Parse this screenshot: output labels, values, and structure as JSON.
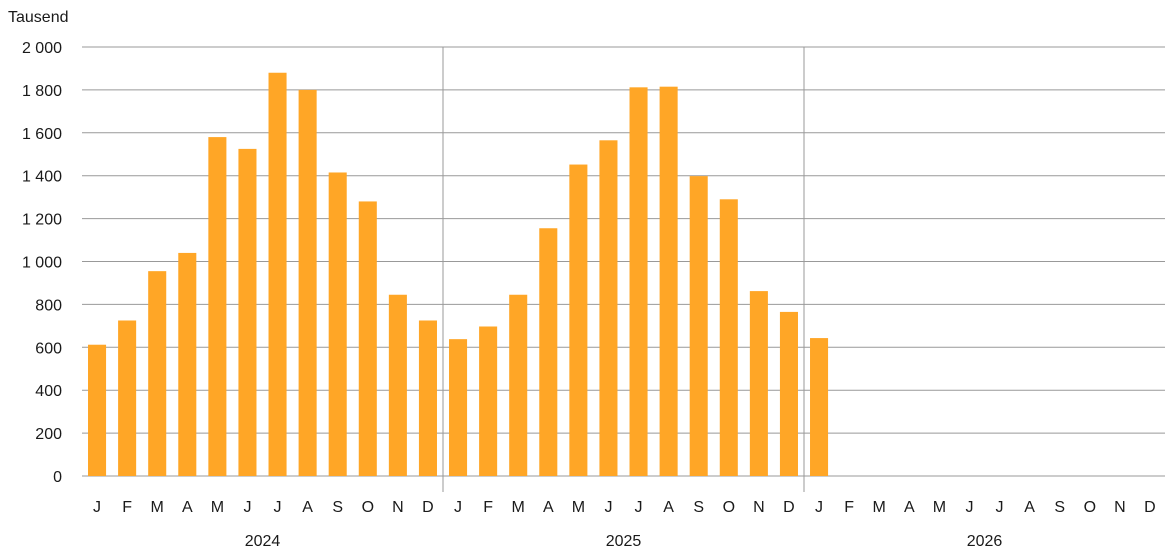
{
  "chart_data": {
    "type": "bar",
    "ylabel": "Tausend",
    "ylim": [
      0,
      2000
    ],
    "y_ticks": [
      0,
      200,
      400,
      600,
      800,
      1000,
      1200,
      1400,
      1600,
      1800,
      2000
    ],
    "y_tick_labels": [
      "0",
      "200",
      "400",
      "600",
      "800",
      "1 000",
      "1 200",
      "1 400",
      "1 600",
      "1 800",
      "2 000"
    ],
    "categories": [
      "J",
      "F",
      "M",
      "A",
      "M",
      "J",
      "J",
      "A",
      "S",
      "O",
      "N",
      "D",
      "J",
      "F",
      "M",
      "A",
      "M",
      "J",
      "J",
      "A",
      "S",
      "O",
      "N",
      "D",
      "J",
      "F",
      "M",
      "A",
      "M",
      "J",
      "J",
      "A",
      "S",
      "O",
      "N",
      "D"
    ],
    "groups": [
      "2024",
      "2025",
      "2026"
    ],
    "values": [
      612,
      725,
      955,
      1040,
      1580,
      1525,
      1880,
      1800,
      1415,
      1280,
      845,
      725,
      638,
      697,
      845,
      1155,
      1452,
      1565,
      1812,
      1815,
      1398,
      1290,
      862,
      765,
      643,
      null,
      null,
      null,
      null,
      null,
      null,
      null,
      null,
      null,
      null,
      null
    ],
    "colors": {
      "bar": "#FFA626",
      "grid": "#999999",
      "axis": "#999999"
    },
    "grid": true,
    "legend": "none"
  }
}
